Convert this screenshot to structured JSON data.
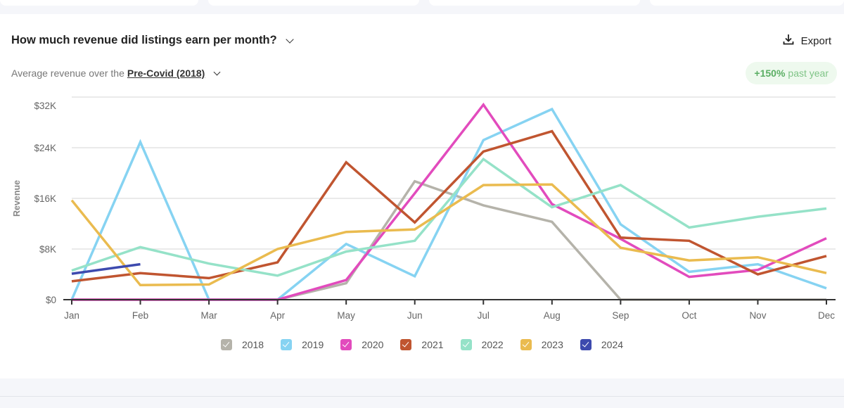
{
  "header": {
    "title": "How much revenue did listings earn per month?",
    "subtitle_prefix": "Average revenue over the",
    "period_selector": "Pre-Covid (2018)",
    "export_label": "Export",
    "badge_value": "+150%",
    "badge_label": "past year"
  },
  "colors": {
    "2018": "#b5b3aa",
    "2019": "#86d3f2",
    "2020": "#e24bbd",
    "2021": "#c05530",
    "2022": "#95e2c8",
    "2023": "#eabb4f",
    "2024": "#3d4aae",
    "badge_bg": "#eef9ee",
    "badge_text": "#5aae63"
  },
  "chart_data": {
    "type": "line",
    "title": "How much revenue did listings earn per month?",
    "xlabel": "",
    "ylabel": "Revenue",
    "categories": [
      "Jan",
      "Feb",
      "Mar",
      "Apr",
      "May",
      "Jun",
      "Jul",
      "Aug",
      "Sep",
      "Oct",
      "Nov",
      "Dec"
    ],
    "yticks": [
      0,
      8000,
      16000,
      24000,
      32000
    ],
    "ytick_labels": [
      "$0",
      "$8K",
      "$16K",
      "$24K",
      "$32K"
    ],
    "ylim": [
      0,
      32000
    ],
    "grid": true,
    "legend_position": "bottom",
    "series": [
      {
        "name": "2018",
        "values": [
          0,
          0,
          0,
          0,
          2600,
          18700,
          14900,
          12300,
          0,
          0,
          0,
          0
        ]
      },
      {
        "name": "2019",
        "values": [
          0,
          24900,
          0,
          0,
          8800,
          3700,
          25200,
          30100,
          11900,
          4400,
          5600,
          1800
        ]
      },
      {
        "name": "2020",
        "values": [
          0,
          0,
          0,
          0,
          3100,
          16800,
          30800,
          15100,
          9600,
          3600,
          4700,
          9700
        ]
      },
      {
        "name": "2021",
        "values": [
          2900,
          4200,
          3400,
          5900,
          21700,
          12200,
          23400,
          26600,
          9800,
          9300,
          4000,
          6900
        ]
      },
      {
        "name": "2022",
        "values": [
          4600,
          8300,
          5700,
          3800,
          7600,
          9300,
          22200,
          14600,
          18100,
          11400,
          13100,
          14400
        ]
      },
      {
        "name": "2023",
        "values": [
          15700,
          2300,
          2400,
          8000,
          10700,
          11100,
          18100,
          18200,
          8200,
          6200,
          6700,
          4200
        ]
      },
      {
        "name": "2024",
        "values": [
          4100,
          5600
        ]
      }
    ]
  }
}
